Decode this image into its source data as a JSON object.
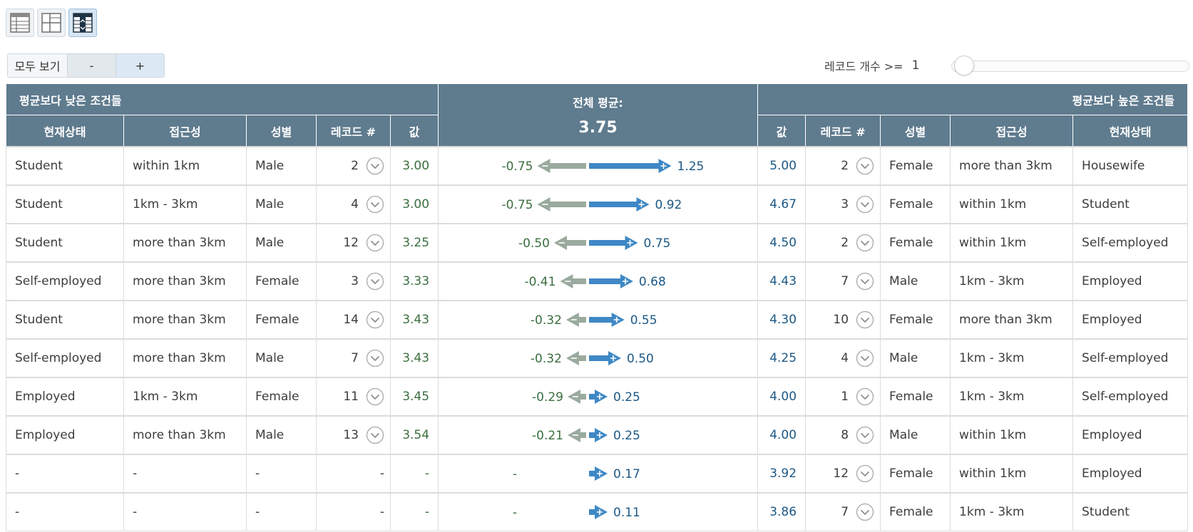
{
  "toolbar": {
    "view_icons": [
      {
        "name": "table-view-icon",
        "active": false
      },
      {
        "name": "split-view-icon",
        "active": false
      },
      {
        "name": "compare-view-icon",
        "active": true
      }
    ],
    "zoom": {
      "all_label": "모두 보기",
      "minus_label": "-",
      "plus_label": "+"
    }
  },
  "filter": {
    "label": "레코드 개수 >=",
    "value": "1"
  },
  "header": {
    "low_group": "평균보다 낮은 조건들",
    "avg_label": "전체 평균:",
    "avg_value": "3.75",
    "high_group": "평균보다 높은 조건들",
    "low_cols": [
      "현재상태",
      "접근성",
      "성별",
      "레코드 #",
      "값"
    ],
    "high_cols": [
      "값",
      "레코드 #",
      "성별",
      "접근성",
      "현재상태"
    ]
  },
  "colors": {
    "header_bg": "#5f7b8e",
    "low_arrow": "#9aaa9e",
    "high_arrow": "#3f88c5",
    "low_text": "#3a6e3f",
    "high_text": "#1c5885"
  },
  "rows": [
    {
      "low": {
        "status": "Student",
        "access": "within 1km",
        "gender": "Male",
        "count": "2",
        "value": "3.00",
        "diff": "-0.75",
        "diff_num": -0.75
      },
      "high": {
        "value": "5.00",
        "count": "2",
        "gender": "Female",
        "access": "more than 3km",
        "status": "Housewife",
        "diff": "1.25",
        "diff_num": 1.25
      }
    },
    {
      "low": {
        "status": "Student",
        "access": "1km - 3km",
        "gender": "Male",
        "count": "4",
        "value": "3.00",
        "diff": "-0.75",
        "diff_num": -0.75
      },
      "high": {
        "value": "4.67",
        "count": "3",
        "gender": "Female",
        "access": "within 1km",
        "status": "Student",
        "diff": "0.92",
        "diff_num": 0.92
      }
    },
    {
      "low": {
        "status": "Student",
        "access": "more than 3km",
        "gender": "Male",
        "count": "12",
        "value": "3.25",
        "diff": "-0.50",
        "diff_num": -0.5
      },
      "high": {
        "value": "4.50",
        "count": "2",
        "gender": "Female",
        "access": "within 1km",
        "status": "Self-employed",
        "diff": "0.75",
        "diff_num": 0.75
      }
    },
    {
      "low": {
        "status": "Self-employed",
        "access": "more than 3km",
        "gender": "Female",
        "count": "3",
        "value": "3.33",
        "diff": "-0.41",
        "diff_num": -0.41
      },
      "high": {
        "value": "4.43",
        "count": "7",
        "gender": "Male",
        "access": "1km - 3km",
        "status": "Employed",
        "diff": "0.68",
        "diff_num": 0.68
      }
    },
    {
      "low": {
        "status": "Student",
        "access": "more than 3km",
        "gender": "Female",
        "count": "14",
        "value": "3.43",
        "diff": "-0.32",
        "diff_num": -0.32
      },
      "high": {
        "value": "4.30",
        "count": "10",
        "gender": "Female",
        "access": "more than 3km",
        "status": "Employed",
        "diff": "0.55",
        "diff_num": 0.55
      }
    },
    {
      "low": {
        "status": "Self-employed",
        "access": "more than 3km",
        "gender": "Male",
        "count": "7",
        "value": "3.43",
        "diff": "-0.32",
        "diff_num": -0.32
      },
      "high": {
        "value": "4.25",
        "count": "4",
        "gender": "Male",
        "access": "1km - 3km",
        "status": "Self-employed",
        "diff": "0.50",
        "diff_num": 0.5
      }
    },
    {
      "low": {
        "status": "Employed",
        "access": "1km - 3km",
        "gender": "Female",
        "count": "11",
        "value": "3.45",
        "diff": "-0.29",
        "diff_num": -0.29
      },
      "high": {
        "value": "4.00",
        "count": "1",
        "gender": "Female",
        "access": "1km - 3km",
        "status": "Self-employed",
        "diff": "0.25",
        "diff_num": 0.25
      }
    },
    {
      "low": {
        "status": "Employed",
        "access": "more than 3km",
        "gender": "Male",
        "count": "13",
        "value": "3.54",
        "diff": "-0.21",
        "diff_num": -0.21
      },
      "high": {
        "value": "4.00",
        "count": "8",
        "gender": "Male",
        "access": "within 1km",
        "status": "Employed",
        "diff": "0.25",
        "diff_num": 0.25
      }
    },
    {
      "low": {
        "status": "-",
        "access": "-",
        "gender": "-",
        "count": "-",
        "value": "-",
        "diff": "-",
        "diff_num": 0
      },
      "high": {
        "value": "3.92",
        "count": "12",
        "gender": "Female",
        "access": "within 1km",
        "status": "Employed",
        "diff": "0.17",
        "diff_num": 0.17
      }
    },
    {
      "low": {
        "status": "-",
        "access": "-",
        "gender": "-",
        "count": "-",
        "value": "-",
        "diff": "-",
        "diff_num": 0
      },
      "high": {
        "value": "3.86",
        "count": "7",
        "gender": "Female",
        "access": "1km - 3km",
        "status": "Student",
        "diff": "0.11",
        "diff_num": 0.11
      }
    }
  ]
}
